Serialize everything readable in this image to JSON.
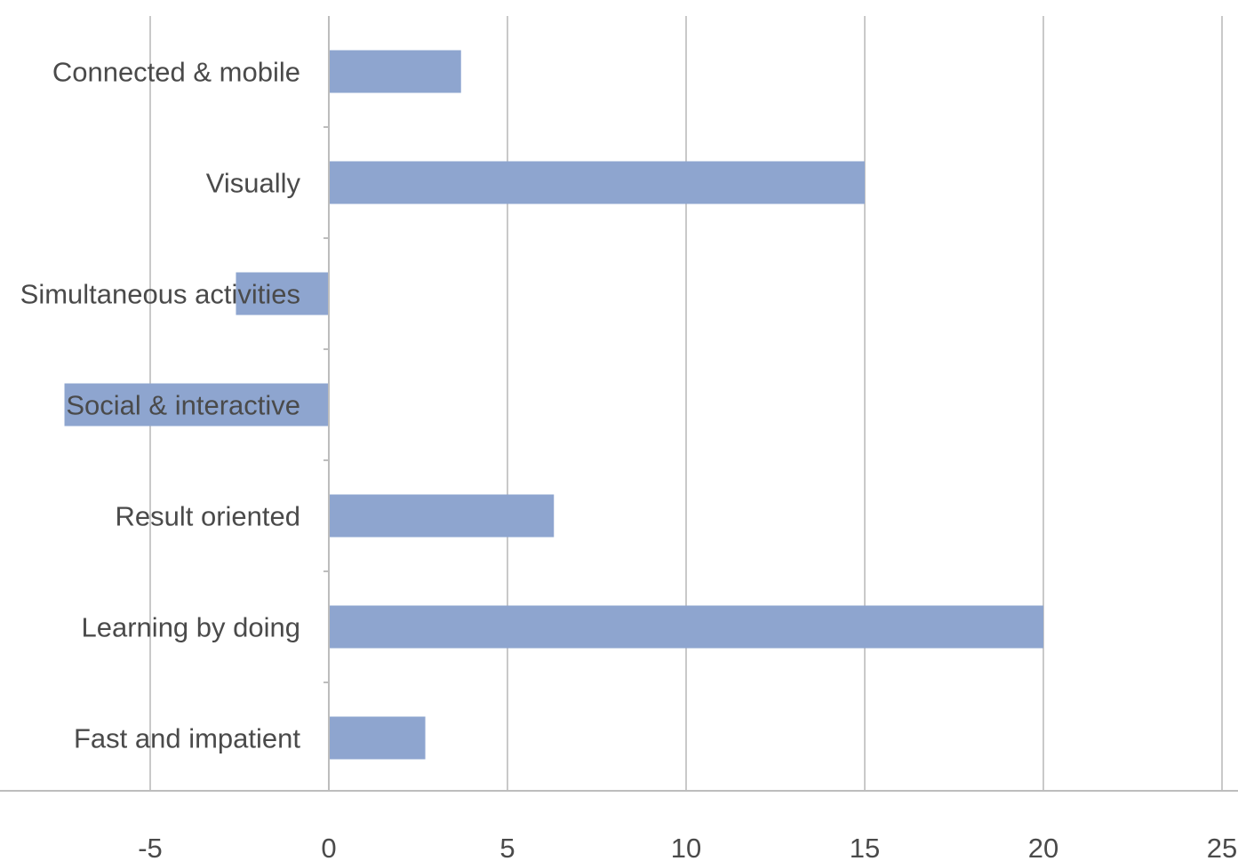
{
  "chart_data": {
    "type": "bar",
    "orientation": "horizontal",
    "categories": [
      "Connected & mobile",
      "Visually",
      "Simultaneous activities",
      "Social & interactive",
      "Result oriented",
      "Learning by doing",
      "Fast and impatient"
    ],
    "values": [
      3.7,
      15,
      -2.6,
      -7.4,
      6.3,
      20,
      2.7
    ],
    "xlim": [
      -5,
      25
    ],
    "xticks": [
      -5,
      0,
      5,
      10,
      15,
      20,
      25
    ],
    "grid": true,
    "legend": "none",
    "bar_color": "#8ea5cf",
    "title": "",
    "xlabel": "",
    "ylabel": ""
  }
}
